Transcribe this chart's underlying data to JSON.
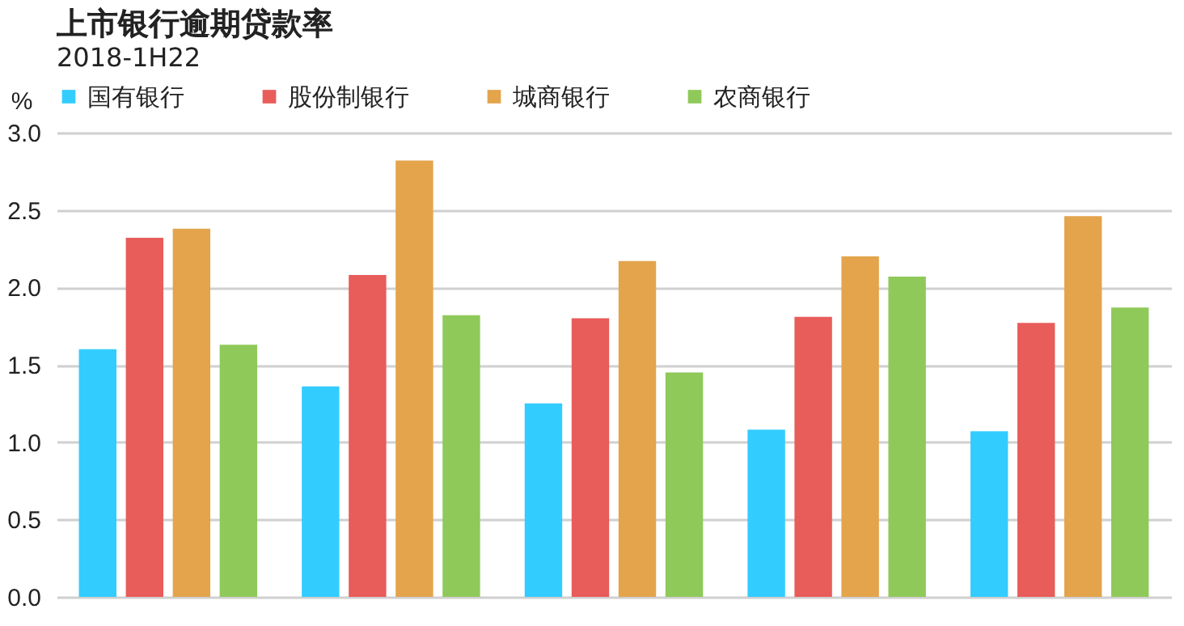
{
  "chart_data": {
    "type": "bar",
    "title": "上市银行逾期贷款率",
    "subtitle": "2018-1H22",
    "ylabel": "%",
    "categories": [
      null,
      null,
      null,
      null,
      null
    ],
    "series": [
      {
        "name": "国有银行",
        "color": "#33ccff",
        "values": [
          1.6,
          1.36,
          1.25,
          1.08,
          1.07
        ]
      },
      {
        "name": "股份制银行",
        "color": "#e85c5a",
        "values": [
          2.32,
          2.08,
          1.8,
          1.81,
          1.77
        ]
      },
      {
        "name": "城商银行",
        "color": "#e3a44c",
        "values": [
          2.38,
          2.82,
          2.17,
          2.2,
          2.46
        ]
      },
      {
        "name": "农商银行",
        "color": "#8fc95a",
        "values": [
          1.63,
          1.82,
          1.45,
          2.07,
          1.87
        ]
      }
    ],
    "ylim": [
      0,
      3
    ],
    "yticks": [
      {
        "value": 0,
        "label": "0.0"
      },
      0.5,
      {
        "value": 1,
        "label": "1.0"
      },
      1.5,
      {
        "value": 2,
        "label": "2.0"
      },
      2.5,
      {
        "value": 3,
        "label": "3.0"
      }
    ],
    "grid": "y",
    "legend": "top",
    "tick_labels": "y"
  }
}
